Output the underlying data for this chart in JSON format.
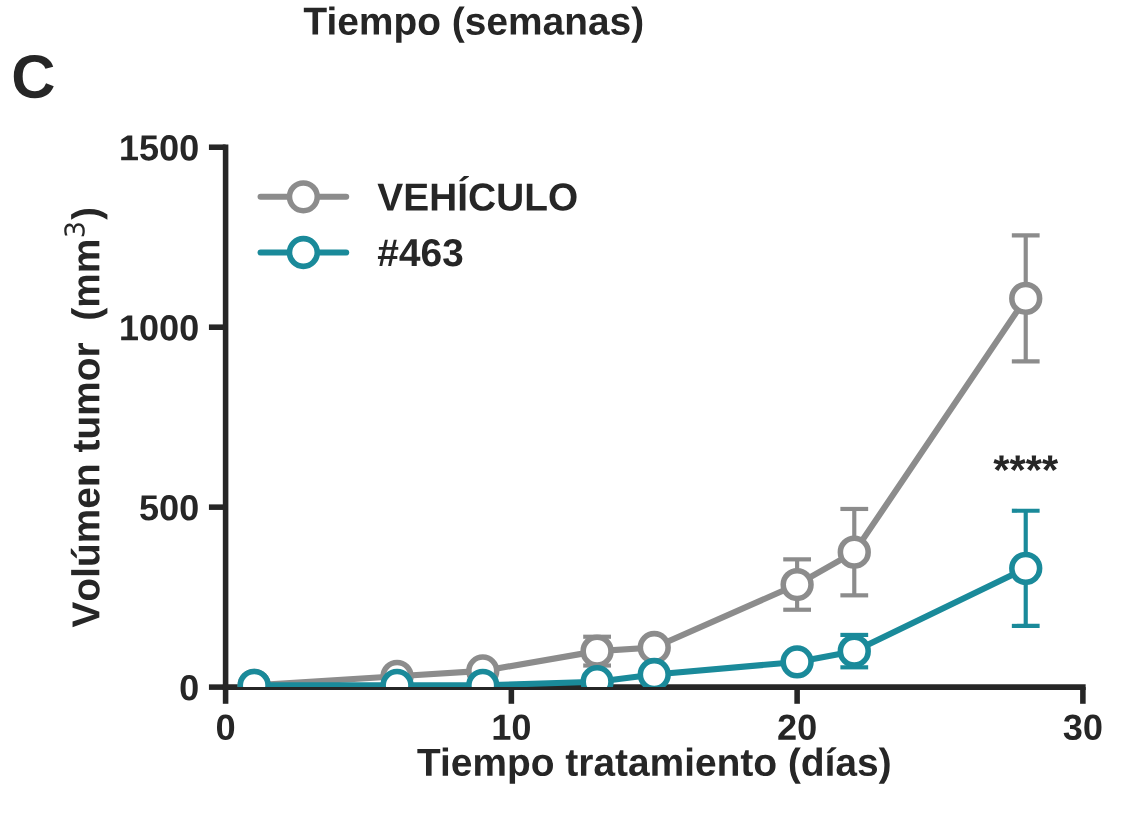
{
  "chart_data": {
    "type": "line",
    "xlabel": "Tiempo tratamiento (días)",
    "ylabel": "Volúmen tumor  (mm$^{3}$)",
    "x": [
      1,
      6,
      9,
      13,
      15,
      20,
      22,
      28
    ],
    "series": [
      {
        "name": "VEHÍCULO",
        "color": "#8c8c8c",
        "values": [
          5,
          30,
          45,
          100,
          110,
          285,
          375,
          1080
        ],
        "errors": [
          null,
          null,
          null,
          40,
          null,
          70,
          120,
          175
        ]
      },
      {
        "name": "#463",
        "color": "#1a8a9a",
        "values": [
          5,
          5,
          5,
          15,
          35,
          70,
          100,
          330
        ],
        "errors": [
          null,
          null,
          null,
          null,
          null,
          null,
          45,
          160
        ]
      }
    ],
    "xlim": [
      0,
      30
    ],
    "xticks": [
      0,
      10,
      20,
      30
    ],
    "ylim": [
      0,
      1500
    ],
    "yticks": [
      0,
      500,
      1000,
      1500
    ],
    "annotations": [
      "C",
      "Tiempo (semanas)",
      "****"
    ],
    "marker": "circle",
    "legend": "top left",
    "grid": false
  }
}
